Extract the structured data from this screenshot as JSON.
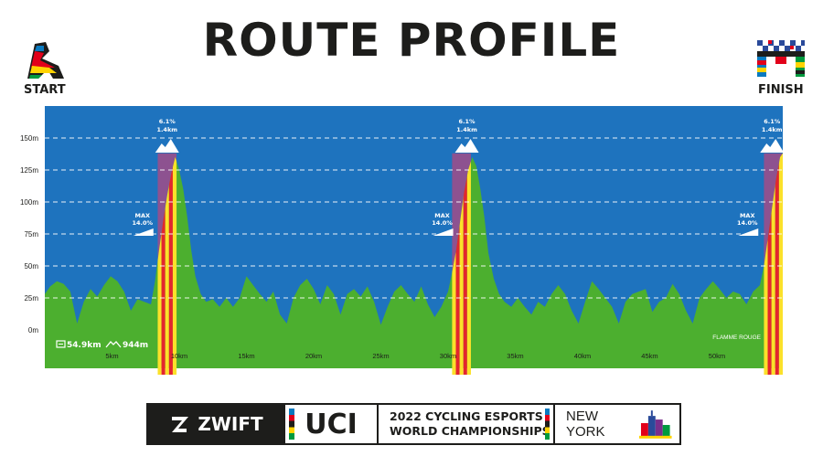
{
  "title": "ROUTE PROFILE",
  "start_label": "START",
  "finish_label": "FINISH",
  "colors": {
    "sky": "#1e73be",
    "terrain": "#4caf2f",
    "climb_zone": "#8d5290",
    "climb_red": "#e3262e",
    "climb_yellow": "#fbe12a",
    "grid": "#ffffff"
  },
  "stats": {
    "distance": "54.9km",
    "elevation": "944m"
  },
  "flamme_rouge": "FLAMME ROUGE",
  "climbs": [
    {
      "grade": "6.1%",
      "length": "1.4km",
      "max_line1": "MAX",
      "max_line2": "14.0%"
    },
    {
      "grade": "6.1%",
      "length": "1.4km",
      "max_line1": "MAX",
      "max_line2": "14.0%"
    },
    {
      "grade": "6.1%",
      "length": "1.4km",
      "max_line1": "MAX",
      "max_line2": "14.0%"
    }
  ],
  "footer": {
    "zwift": "ZWIFT",
    "uci": "UCI",
    "line1": "2022 CYCLING ESPORTS",
    "line2": "WORLD CHAMPIONSHIPS",
    "city": "NEW YORK"
  },
  "chart_data": {
    "type": "area",
    "xlabel": "",
    "ylabel": "",
    "xlim": [
      0,
      54.9
    ],
    "ylim": [
      -30,
      175
    ],
    "y_ticks": [
      0,
      25,
      50,
      75,
      100,
      125,
      150
    ],
    "y_tick_labels": [
      "0m",
      "25m",
      "50m",
      "75m",
      "100m",
      "125m",
      "150m"
    ],
    "x_ticks": [
      5,
      10,
      15,
      20,
      25,
      30,
      35,
      40,
      45,
      50
    ],
    "x_tick_labels": [
      "5km",
      "10km",
      "15km",
      "20km",
      "25km",
      "30km",
      "35km",
      "40km",
      "45km",
      "50km"
    ],
    "grid": true,
    "climb_ranges": [
      [
        8.4,
        9.8
      ],
      [
        30.3,
        31.7
      ],
      [
        53.5,
        54.9
      ]
    ],
    "series": [
      {
        "x": [
          0,
          0.4,
          0.9,
          1.4,
          1.9,
          2.4,
          2.9,
          3.4,
          3.9,
          4.4,
          4.9,
          5.4,
          5.9,
          6.4,
          6.9,
          7.4,
          7.9,
          8.2,
          8.5,
          8.8,
          9.1,
          9.4,
          9.7,
          10.0,
          10.3,
          10.6,
          10.9,
          11.2,
          11.6,
          12.0,
          12.5,
          13.0,
          13.5,
          14.0,
          14.5,
          15.0,
          15.5,
          16.0,
          16.5,
          17.0,
          17.5,
          18.0,
          18.5,
          19.0,
          19.5,
          20.0,
          20.5,
          21.0,
          21.5,
          22.0,
          22.5,
          23.0,
          23.5,
          24.0,
          24.5,
          25.0,
          25.5,
          26.0,
          26.5,
          27.0,
          27.5,
          28.0,
          28.5,
          29.0,
          29.5,
          30.0,
          30.3,
          30.6,
          30.9,
          31.2,
          31.5,
          31.8,
          32.1,
          32.4,
          32.7,
          33.0,
          33.4,
          33.8,
          34.2,
          34.7,
          35.2,
          35.7,
          36.2,
          36.7,
          37.2,
          37.7,
          38.2,
          38.7,
          39.2,
          39.7,
          40.2,
          40.7,
          41.2,
          41.7,
          42.2,
          42.7,
          43.2,
          43.7,
          44.2,
          44.7,
          45.2,
          45.7,
          46.2,
          46.7,
          47.2,
          47.7,
          48.2,
          48.7,
          49.2,
          49.7,
          50.2,
          50.7,
          51.2,
          51.7,
          52.2,
          52.7,
          53.2,
          53.5,
          53.8,
          54.1,
          54.4,
          54.7,
          54.9
        ],
        "y": [
          28,
          34,
          38,
          36,
          30,
          5,
          22,
          32,
          26,
          35,
          42,
          38,
          30,
          15,
          24,
          22,
          20,
          38,
          62,
          85,
          105,
          122,
          135,
          125,
          110,
          88,
          62,
          42,
          28,
          22,
          24,
          18,
          25,
          18,
          25,
          42,
          35,
          28,
          22,
          30,
          12,
          5,
          25,
          35,
          40,
          32,
          20,
          35,
          28,
          12,
          28,
          32,
          26,
          34,
          22,
          4,
          18,
          30,
          35,
          28,
          22,
          34,
          20,
          10,
          18,
          30,
          45,
          62,
          85,
          108,
          125,
          135,
          128,
          110,
          88,
          60,
          40,
          28,
          22,
          18,
          25,
          18,
          12,
          22,
          18,
          28,
          35,
          28,
          15,
          5,
          22,
          38,
          32,
          25,
          18,
          5,
          22,
          28,
          30,
          32,
          14,
          22,
          25,
          36,
          28,
          15,
          5,
          25,
          32,
          38,
          32,
          25,
          30,
          28,
          20,
          30,
          35,
          50,
          72,
          95,
          118,
          135,
          138
        ]
      }
    ]
  }
}
